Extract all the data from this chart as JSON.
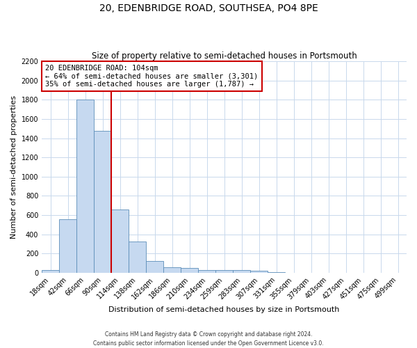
{
  "title": "20, EDENBRIDGE ROAD, SOUTHSEA, PO4 8PE",
  "subtitle": "Size of property relative to semi-detached houses in Portsmouth",
  "xlabel": "Distribution of semi-detached houses by size in Portsmouth",
  "ylabel": "Number of semi-detached properties",
  "footer_line1": "Contains HM Land Registry data © Crown copyright and database right 2024.",
  "footer_line2": "Contains public sector information licensed under the Open Government Licence v3.0.",
  "bin_labels": [
    "18sqm",
    "42sqm",
    "66sqm",
    "90sqm",
    "114sqm",
    "138sqm",
    "162sqm",
    "186sqm",
    "210sqm",
    "234sqm",
    "259sqm",
    "283sqm",
    "307sqm",
    "331sqm",
    "355sqm",
    "379sqm",
    "403sqm",
    "427sqm",
    "451sqm",
    "475sqm",
    "499sqm"
  ],
  "bar_values": [
    30,
    560,
    1800,
    1480,
    660,
    325,
    120,
    60,
    50,
    30,
    25,
    25,
    20,
    10,
    0,
    0,
    0,
    0,
    0,
    0,
    0
  ],
  "bar_color": "#c6d9f0",
  "bar_edge_color": "#5b8db8",
  "annotation_title": "20 EDENBRIDGE ROAD: 104sqm",
  "annotation_line1": "← 64% of semi-detached houses are smaller (3,301)",
  "annotation_line2": "35% of semi-detached houses are larger (1,787) →",
  "vline_color": "#cc0000",
  "annotation_box_edge_color": "#cc0000",
  "vline_x_bin_index": 3.5,
  "ylim": [
    0,
    2200
  ],
  "yticks": [
    0,
    200,
    400,
    600,
    800,
    1000,
    1200,
    1400,
    1600,
    1800,
    2000,
    2200
  ],
  "background_color": "#ffffff",
  "grid_color": "#c8d8ec",
  "title_fontsize": 10,
  "subtitle_fontsize": 8.5,
  "axis_label_fontsize": 8,
  "tick_fontsize": 7
}
